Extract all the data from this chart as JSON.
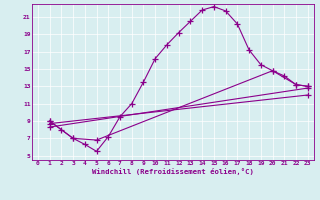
{
  "xlabel": "Windchill (Refroidissement éolien,°C)",
  "bg_color": "#d8eef0",
  "line_color": "#8b008b",
  "xlim": [
    -0.5,
    23.5
  ],
  "ylim": [
    4.5,
    22.5
  ],
  "yticks": [
    5,
    7,
    9,
    11,
    13,
    15,
    17,
    19,
    21
  ],
  "xticks": [
    0,
    1,
    2,
    3,
    4,
    5,
    6,
    7,
    8,
    9,
    10,
    11,
    12,
    13,
    14,
    15,
    16,
    17,
    18,
    19,
    20,
    21,
    22,
    23
  ],
  "curve1_x": [
    1,
    2,
    3,
    4,
    5,
    6,
    7,
    8,
    9,
    10,
    11,
    12,
    13,
    14,
    15,
    16,
    17,
    18,
    19,
    20,
    21,
    22,
    23
  ],
  "curve1_y": [
    9.0,
    8.0,
    7.0,
    6.3,
    5.5,
    7.2,
    9.5,
    11.0,
    13.5,
    16.2,
    17.8,
    19.2,
    20.5,
    21.8,
    22.2,
    21.7,
    20.2,
    17.2,
    15.5,
    14.8,
    14.2,
    13.2,
    13.0
  ],
  "curve2_x": [
    1,
    3,
    5,
    20,
    22,
    23
  ],
  "curve2_y": [
    9.0,
    7.0,
    6.8,
    14.8,
    13.2,
    13.0
  ],
  "curve3_x": [
    1,
    23
  ],
  "curve3_y": [
    8.3,
    12.8
  ],
  "curve4_x": [
    1,
    23
  ],
  "curve4_y": [
    8.7,
    12.0
  ]
}
